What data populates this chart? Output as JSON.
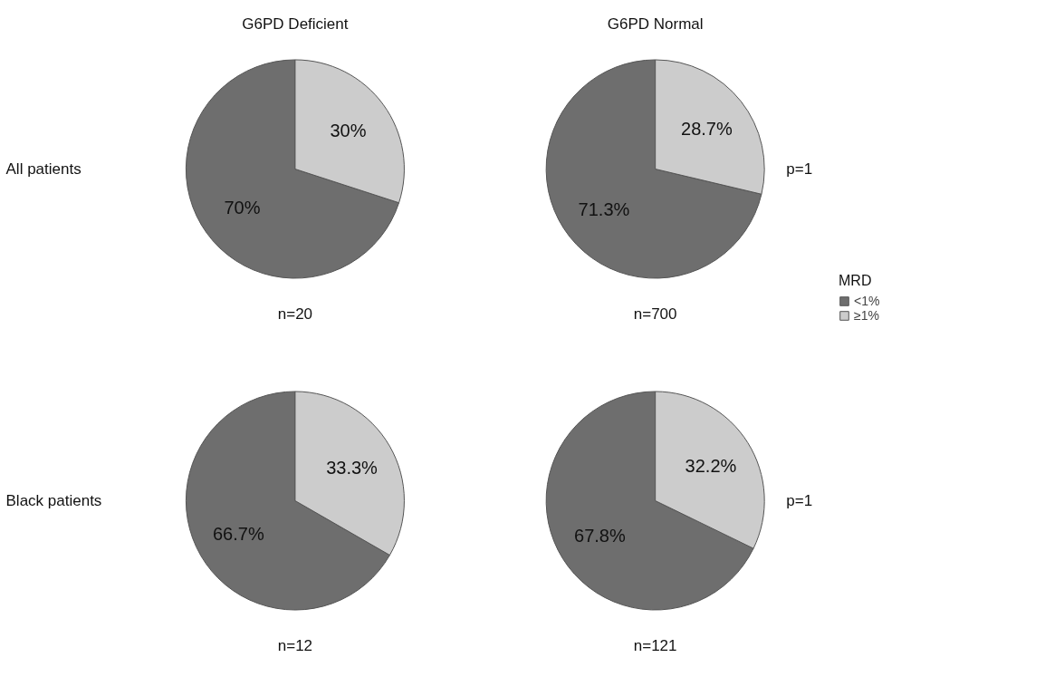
{
  "chart_data": [
    {
      "type": "pie",
      "title": "G6PD Deficient",
      "categories": [
        "<1%",
        "≥1%"
      ],
      "values": [
        70,
        30
      ],
      "colors": [
        "#6e6e6e",
        "#cccccc"
      ],
      "value_labels": [
        "70%",
        "30%"
      ],
      "annotations": [
        "n=20",
        "All patients"
      ],
      "legend": "right",
      "legend_title": "MRD"
    },
    {
      "type": "pie",
      "title": "G6PD Normal",
      "categories": [
        null,
        null
      ],
      "values": [
        71.3,
        28.7
      ],
      "colors": [
        "#6e6e6e",
        "#cccccc"
      ],
      "value_labels": [
        "71.3%",
        "28.7%"
      ],
      "annotations": [
        "n=700",
        "p=1"
      ]
    },
    {
      "type": "pie",
      "categories": [
        null,
        null
      ],
      "values": [
        66.7,
        33.3
      ],
      "colors": [
        "#6e6e6e",
        "#cccccc"
      ],
      "value_labels": [
        "66.7%",
        "33.3%"
      ],
      "annotations": [
        "n=12",
        "Black patients"
      ]
    },
    {
      "type": "pie",
      "categories": [
        null,
        null
      ],
      "values": [
        67.8,
        32.2
      ],
      "colors": [
        "#6e6e6e",
        "#cccccc"
      ],
      "value_labels": [
        "67.8%",
        "32.2%"
      ],
      "annotations": [
        "n=121",
        "p=1"
      ]
    }
  ]
}
